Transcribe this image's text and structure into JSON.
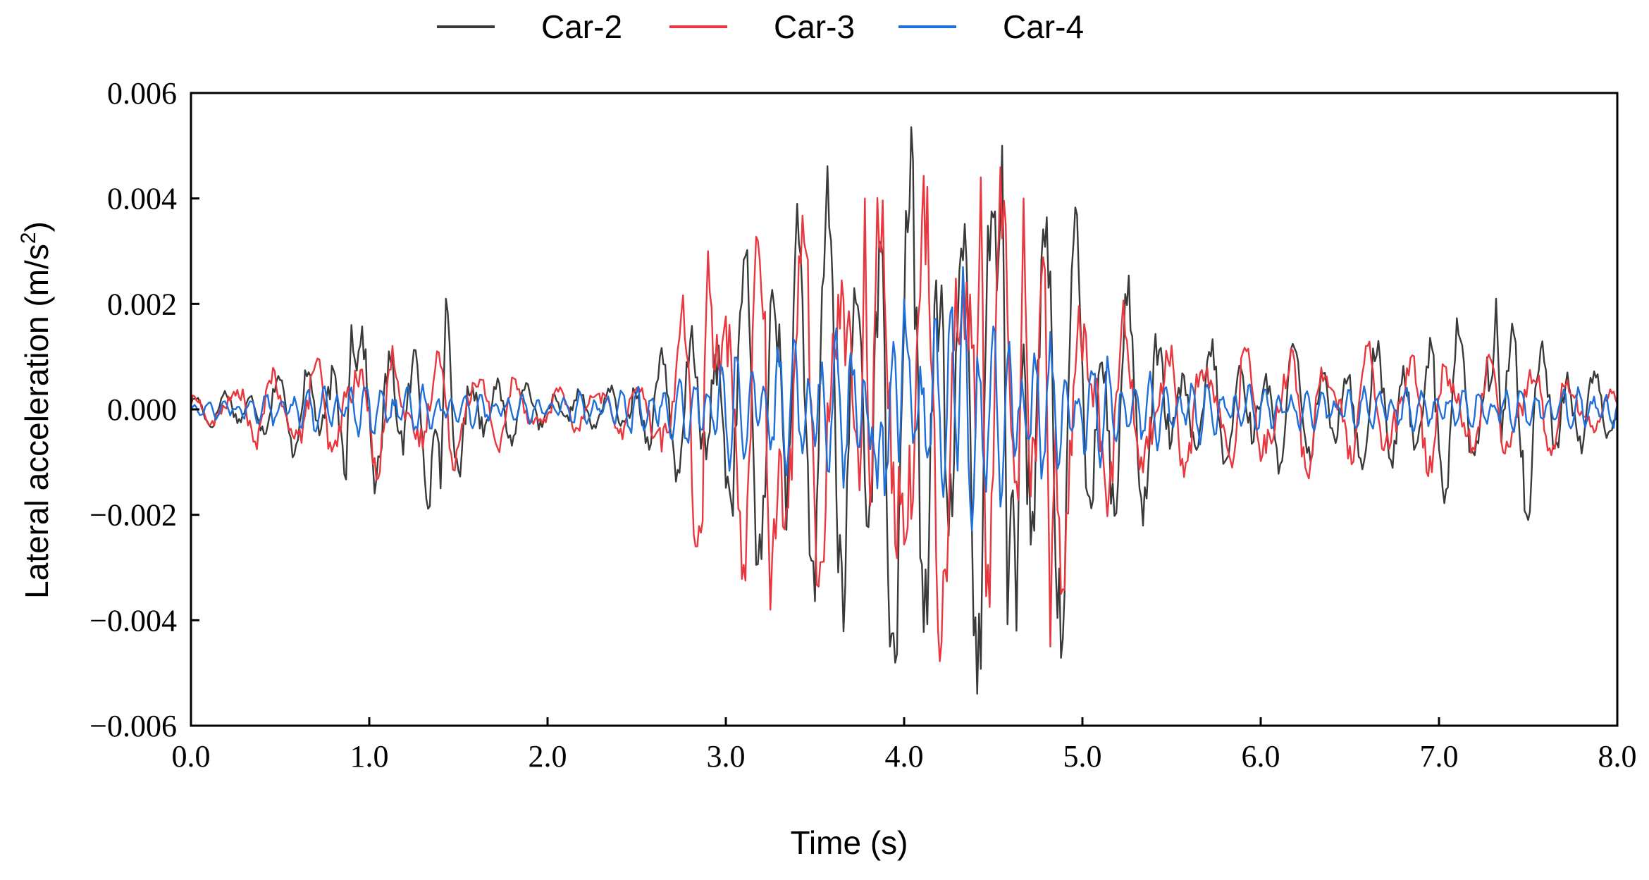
{
  "chart_data": {
    "type": "line",
    "title": "",
    "xlabel": "Time (s)",
    "ylabel": "Lateral acceleration (m/s",
    "ylabel_sup": "2",
    "ylabel_end": ")",
    "xlim": [
      0,
      8
    ],
    "ylim": [
      -0.006,
      0.006
    ],
    "grid": false,
    "legend_position": "top-center",
    "x_ticks": [
      0,
      1,
      2,
      3,
      4,
      5,
      6,
      7,
      8
    ],
    "x_tick_labels": [
      "0.0",
      "1.0",
      "2.0",
      "3.0",
      "4.0",
      "5.0",
      "6.0",
      "7.0",
      "8.0"
    ],
    "y_ticks": [
      0.006,
      0.004,
      0.002,
      0,
      -0.002,
      -0.004,
      -0.006
    ],
    "y_tick_labels": [
      "0.006",
      "0.004",
      "0.002",
      "0.000",
      "−0.002",
      "−0.004",
      "−0.006"
    ],
    "sample_step": 0.01,
    "series": [
      {
        "name": "Car-2",
        "color": "#3a3a3a",
        "envelope": [
          [
            0,
            0.0002
          ],
          [
            0.5,
            0.0006
          ],
          [
            0.9,
            0.0013
          ],
          [
            1.4,
            0.0016
          ],
          [
            1.7,
            0.0006
          ],
          [
            2.3,
            0.0003
          ],
          [
            2.7,
            0.0012
          ],
          [
            3.0,
            0.0022
          ],
          [
            3.4,
            0.0037
          ],
          [
            4.0,
            0.0042
          ],
          [
            4.55,
            0.0047
          ],
          [
            5.0,
            0.0033
          ],
          [
            5.5,
            0.0011
          ],
          [
            6.5,
            0.001
          ],
          [
            7.3,
            0.0017
          ],
          [
            7.6,
            0.0014
          ],
          [
            8.0,
            0.0004
          ]
        ],
        "components": [
          {
            "f": 6.5,
            "a": 0.75,
            "p": 0.3
          },
          {
            "f": 4.2,
            "a": 0.35,
            "p": 1.7
          }
        ],
        "peaks": [
          [
            0.9,
            0.0016
          ],
          [
            1.43,
            0.0021
          ],
          [
            1.4,
            -0.0015
          ],
          [
            3.4,
            0.0039
          ],
          [
            3.92,
            -0.0045
          ],
          [
            4.55,
            0.005
          ],
          [
            4.63,
            -0.0042
          ],
          [
            7.32,
            0.0021
          ],
          [
            7.5,
            -0.0021
          ]
        ]
      },
      {
        "name": "Car-3",
        "color": "#e8373e",
        "envelope": [
          [
            0,
            0.0002
          ],
          [
            0.4,
            0.0007
          ],
          [
            1.0,
            0.0011
          ],
          [
            1.5,
            0.001
          ],
          [
            2.0,
            0.0004
          ],
          [
            2.5,
            0.0005
          ],
          [
            2.7,
            0.0014
          ],
          [
            2.9,
            0.0028
          ],
          [
            3.3,
            0.0034
          ],
          [
            3.7,
            0.0039
          ],
          [
            4.4,
            0.0041
          ],
          [
            4.8,
            0.0035
          ],
          [
            5.1,
            0.002
          ],
          [
            5.5,
            0.0012
          ],
          [
            6.5,
            0.0011
          ],
          [
            7.5,
            0.001
          ],
          [
            8.0,
            0.0003
          ]
        ],
        "components": [
          {
            "f": 4.4,
            "a": 0.75,
            "p": 1.2
          },
          {
            "f": 7.3,
            "a": 0.3,
            "p": 0.5
          }
        ],
        "peaks": [
          [
            2.83,
            -0.0026
          ],
          [
            2.9,
            0.003
          ],
          [
            3.25,
            -0.0038
          ],
          [
            3.78,
            0.004
          ],
          [
            4.43,
            0.0044
          ],
          [
            4.67,
            0.004
          ],
          [
            4.82,
            -0.0045
          ]
        ]
      },
      {
        "name": "Car-4",
        "color": "#1e6fd9",
        "envelope": [
          [
            0,
            0.0001
          ],
          [
            0.9,
            0.0005
          ],
          [
            2.0,
            0.0002
          ],
          [
            2.6,
            0.0005
          ],
          [
            3.0,
            0.001
          ],
          [
            3.8,
            0.0014
          ],
          [
            4.3,
            0.0019
          ],
          [
            4.7,
            0.0013
          ],
          [
            5.3,
            0.0007
          ],
          [
            6.0,
            0.0004
          ],
          [
            8.0,
            0.0004
          ]
        ],
        "components": [
          {
            "f": 12.5,
            "a": 0.7,
            "p": 0.0
          },
          {
            "f": 9.1,
            "a": 0.35,
            "p": 2.2
          }
        ],
        "peaks": [
          [
            4.0,
            0.0021
          ],
          [
            4.33,
            0.0027
          ],
          [
            4.38,
            -0.0023
          ],
          [
            3.85,
            -0.0015
          ]
        ]
      }
    ]
  }
}
